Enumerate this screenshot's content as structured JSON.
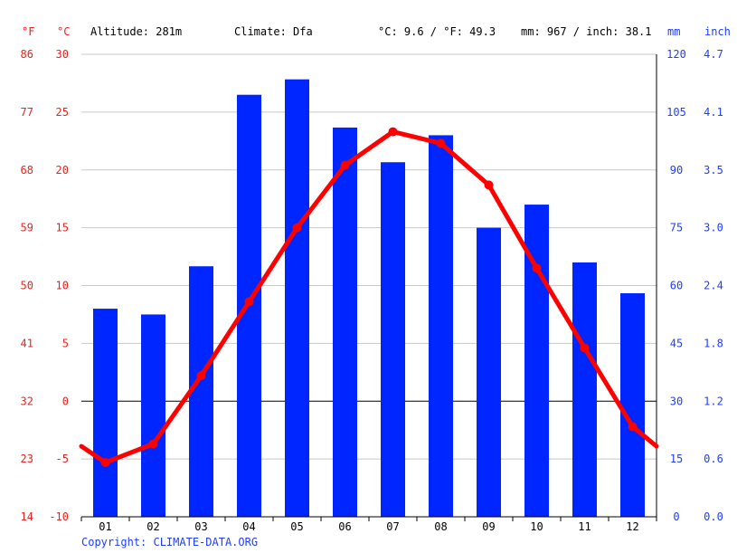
{
  "header": {
    "unit_f": "°F",
    "unit_c": "°C",
    "altitude": "Altitude: 281m",
    "climate": "Climate: Dfa",
    "avg_temp": "°C: 9.6 / °F: 49.3",
    "precip_total": "mm: 967 / inch: 38.1",
    "unit_mm": "mm",
    "unit_inch": "inch"
  },
  "copyright": "Copyright: CLIMATE-DATA.ORG",
  "colors": {
    "temp_line": "#ff0000",
    "precip_bar": "#0026ff",
    "axis_red": "#e8231f",
    "axis_blue": "#1f3dff",
    "grid": "#c8c8c8"
  },
  "chart_data": {
    "type": "bar",
    "categories": [
      "01",
      "02",
      "03",
      "04",
      "05",
      "06",
      "07",
      "08",
      "09",
      "10",
      "11",
      "12"
    ],
    "series": [
      {
        "kind": "bar",
        "axis": "precip_mm",
        "values": [
          54,
          52.5,
          65,
          109.5,
          113.5,
          101,
          92,
          99,
          75,
          81,
          66,
          58
        ]
      },
      {
        "kind": "line",
        "axis": "temp_c",
        "values": [
          -5.3,
          -3.7,
          2.2,
          8.6,
          15.0,
          20.4,
          23.3,
          22.3,
          18.7,
          11.5,
          4.6,
          -2.2
        ],
        "edge_start": -3.9,
        "edge_end": -3.9
      }
    ],
    "temp_c_ticks": [
      "30",
      "25",
      "20",
      "15",
      "10",
      "5",
      "0",
      "-5",
      "-10"
    ],
    "temp_f_ticks": [
      "86",
      "77",
      "68",
      "59",
      "50",
      "41",
      "32",
      "23",
      "14"
    ],
    "mm_ticks": [
      "120",
      "105",
      "90",
      "75",
      "60",
      "45",
      "30",
      "15",
      "0"
    ],
    "inch_ticks": [
      "4.7",
      "4.1",
      "3.5",
      "3.0",
      "2.4",
      "1.8",
      "1.2",
      "0.6",
      "0.0"
    ],
    "temp_c_range": [
      -10,
      30
    ],
    "precip_mm_range": [
      0,
      120
    ],
    "grid": true
  }
}
